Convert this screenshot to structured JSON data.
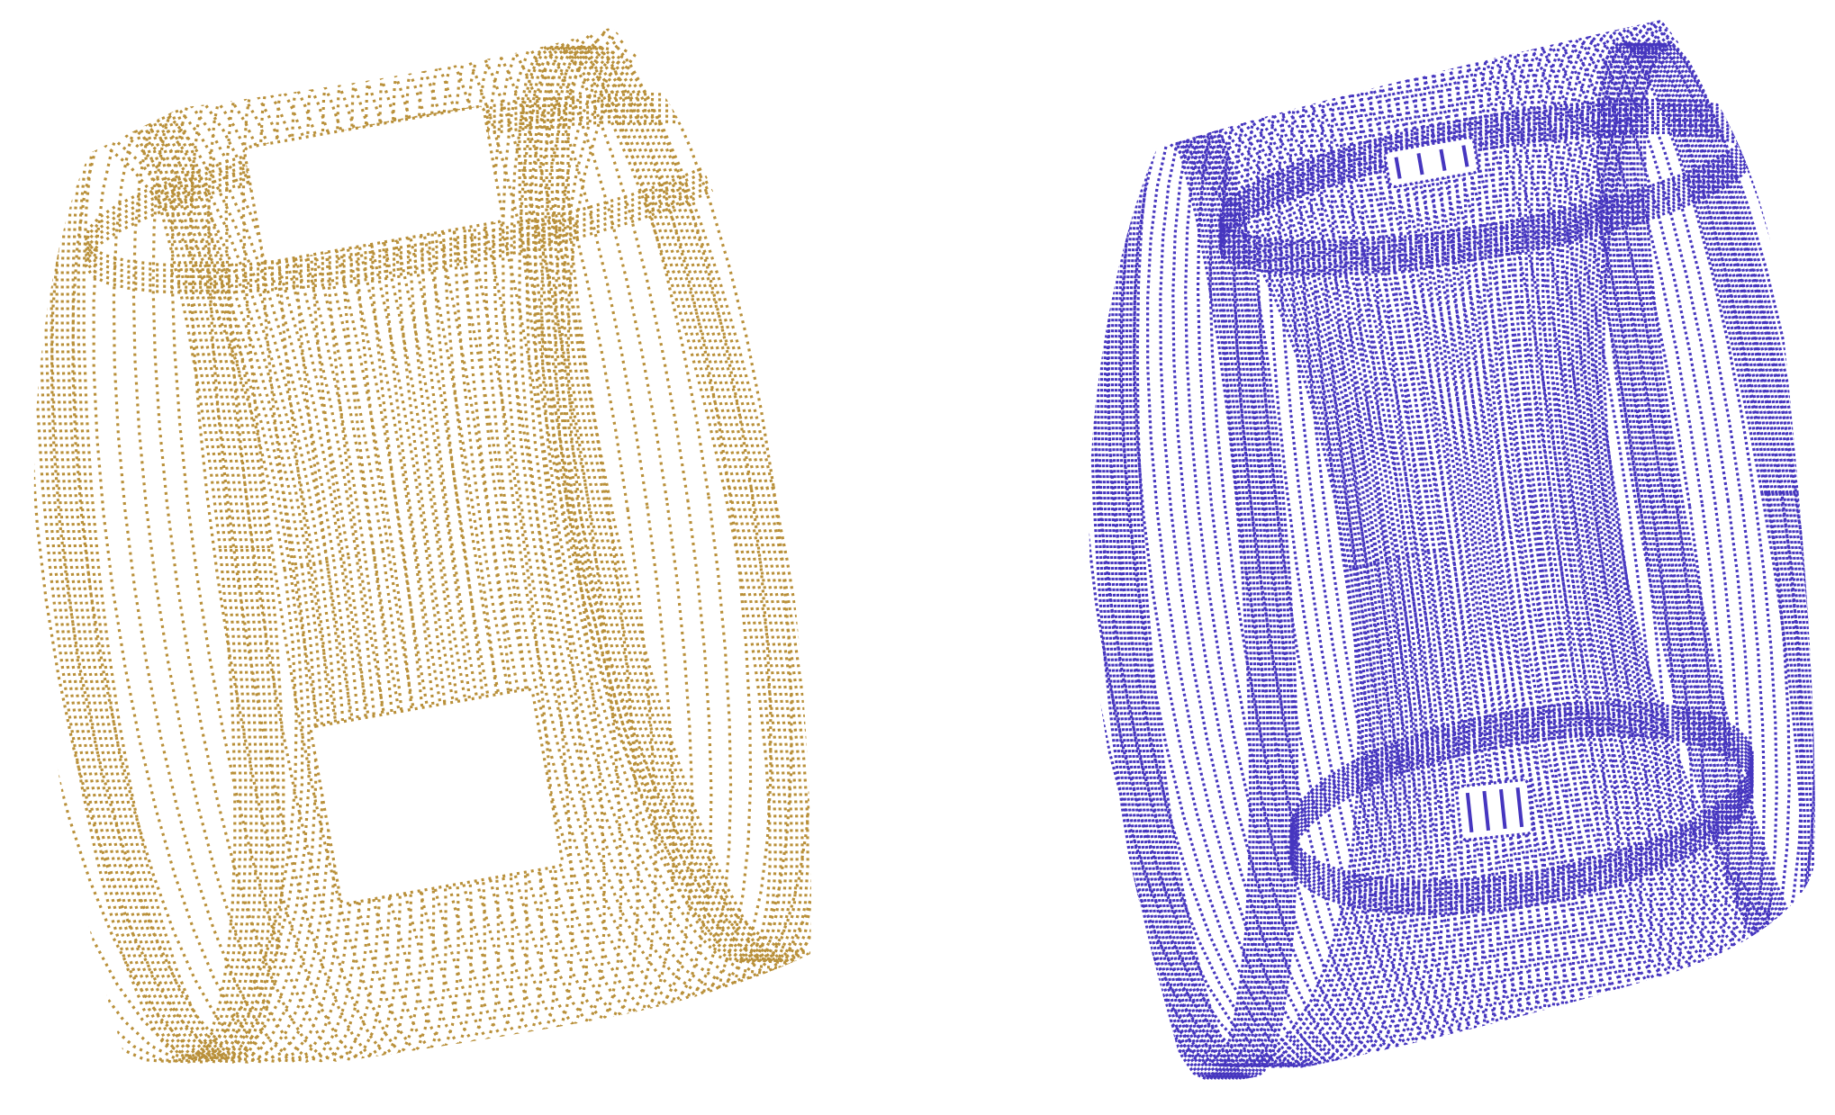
{
  "background": "#ffffff",
  "figures": [
    {
      "id": "left",
      "shape": "point-cloud-shell",
      "color": "#b9903a",
      "holes": 2,
      "inner_pattern": "sparse"
    },
    {
      "id": "right",
      "shape": "point-cloud-shell",
      "color": "#4636bf",
      "holes": 2,
      "inner_pattern": "striped"
    }
  ]
}
